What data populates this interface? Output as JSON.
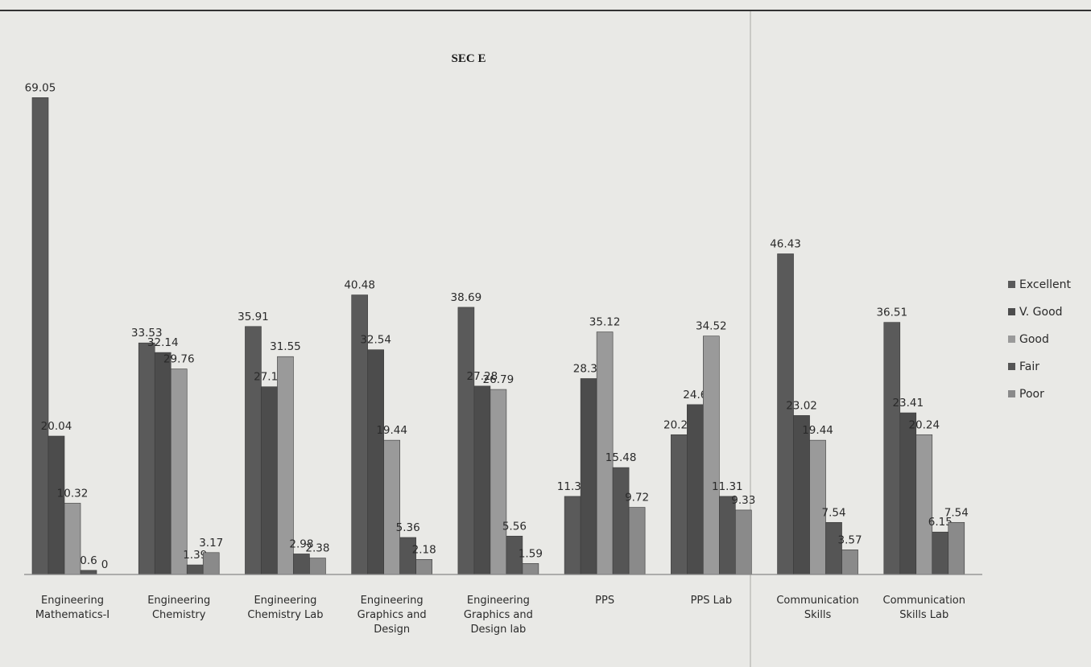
{
  "chart_data": {
    "type": "bar",
    "title": "SEC E",
    "xlabel": "",
    "ylabel": "",
    "ylim": [
      0,
      72
    ],
    "grid": false,
    "legend_position": "right",
    "colors": [
      "#5a5a5a",
      "#4c4c4c",
      "#9a9a9a",
      "#555555",
      "#8a8a8a"
    ],
    "categories": [
      [
        "Engineering",
        "Mathematics-I"
      ],
      [
        "Engineering",
        "Chemistry"
      ],
      [
        "Engineering",
        "Chemistry Lab"
      ],
      [
        "Engineering",
        "Graphics and",
        "Design"
      ],
      [
        "Engineering",
        "Graphics and",
        "Design lab"
      ],
      [
        "PPS"
      ],
      [
        "PPS Lab"
      ],
      [
        "Communication",
        "Skills"
      ],
      [
        "Communication",
        "Skills Lab"
      ]
    ],
    "series": [
      {
        "name": "Excellent",
        "values": [
          69.05,
          33.53,
          35.91,
          40.48,
          38.69,
          11.31,
          20.24,
          46.43,
          36.51
        ]
      },
      {
        "name": "V. Good",
        "values": [
          20.04,
          32.14,
          27.18,
          32.54,
          27.28,
          28.37,
          24.6,
          23.02,
          23.41
        ]
      },
      {
        "name": "Good",
        "values": [
          10.32,
          29.76,
          31.55,
          19.44,
          26.79,
          35.12,
          34.52,
          19.44,
          20.24
        ]
      },
      {
        "name": "Fair",
        "values": [
          0.6,
          1.39,
          2.98,
          5.36,
          5.56,
          15.48,
          11.31,
          7.54,
          6.15
        ]
      },
      {
        "name": "Poor",
        "values": [
          0,
          3.17,
          2.38,
          2.18,
          1.59,
          9.72,
          9.33,
          3.57,
          7.54
        ]
      }
    ]
  }
}
